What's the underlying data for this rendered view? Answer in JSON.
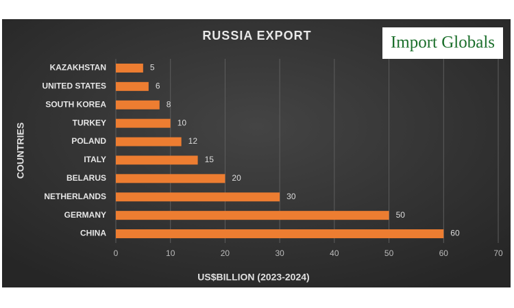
{
  "chart_data": {
    "type": "bar",
    "orientation": "horizontal",
    "title": "RUSSIA EXPORT",
    "logo": "Import Globals",
    "x_label": "US$BILLION (2023-2024)",
    "y_label": "COUNTRIES",
    "categories": [
      "KAZAKHSTAN",
      "UNITED STATES",
      "SOUTH KOREA",
      "TURKEY",
      "POLAND",
      "ITALY",
      "BELARUS",
      "NETHERLANDS",
      "GERMANY",
      "CHINA"
    ],
    "values": [
      5,
      6,
      8,
      10,
      12,
      15,
      20,
      30,
      50,
      60
    ],
    "color": "#ed7d31",
    "xlim": [
      0,
      70
    ],
    "xticks": [
      0,
      10,
      20,
      30,
      40,
      50,
      60,
      70
    ],
    "grid": true
  }
}
